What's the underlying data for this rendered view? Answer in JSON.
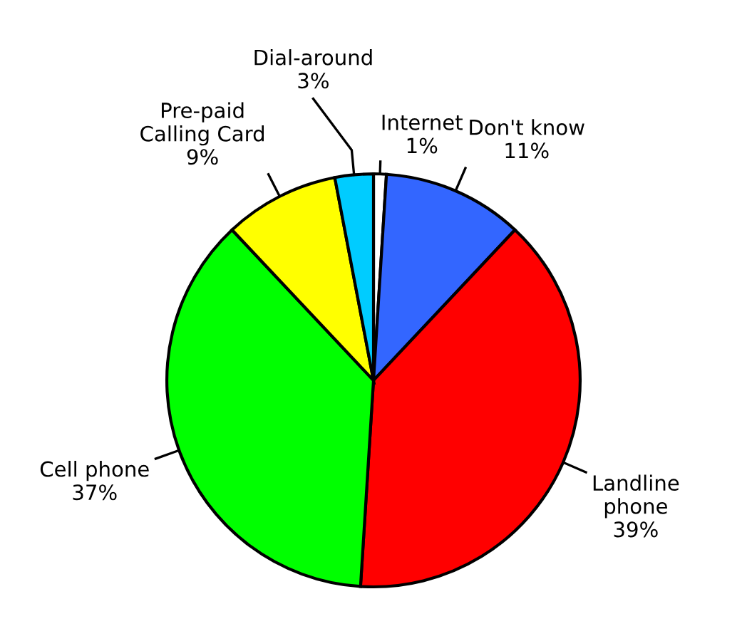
{
  "chart_data": {
    "type": "pie",
    "categories": [
      "Internet",
      "Don't know",
      "Landline\nphone",
      "Cell phone",
      "Pre-paid\nCalling Card",
      "Dial-around"
    ],
    "values": [
      1,
      11,
      39,
      37,
      9,
      3
    ],
    "value_labels": [
      "1%",
      "11%",
      "39%",
      "37%",
      "9%",
      "3%"
    ],
    "colors": [
      "#ffffff",
      "#3366ff",
      "#ff0000",
      "#00ff00",
      "#ffff00",
      "#00ccff"
    ]
  }
}
